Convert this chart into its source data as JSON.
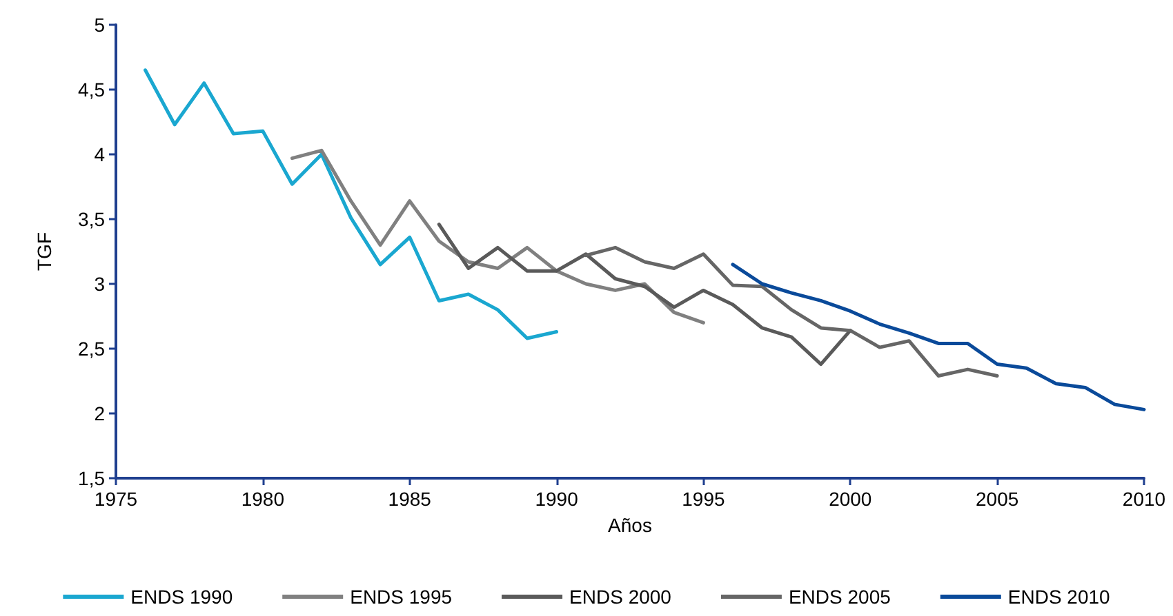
{
  "chart_data": {
    "type": "line",
    "xlabel": "Años",
    "ylabel": "TGF",
    "xlim": [
      1975,
      2010
    ],
    "xticks": [
      1975,
      1980,
      1985,
      1990,
      1995,
      2000,
      2005,
      2010
    ],
    "ylim": [
      1.5,
      5
    ],
    "yticks": [
      {
        "value": 1.5,
        "label": "1,5"
      },
      2,
      {
        "value": 2.5,
        "label": "2,5"
      },
      3,
      {
        "value": 3.5,
        "label": "3,5"
      },
      4,
      {
        "value": 4.5,
        "label": "4,5"
      },
      5
    ],
    "grid": false,
    "legend": "bottom",
    "marker": "none",
    "line_style": "solid",
    "series": [
      {
        "name": "ENDS 1990",
        "color": "#1aa7d0",
        "x": [
          1976,
          1977,
          1978,
          1979,
          1980,
          1981,
          1982,
          1983,
          1984,
          1985,
          1986,
          1987,
          1988,
          1989,
          1990
        ],
        "values": [
          4.65,
          4.23,
          4.55,
          4.16,
          4.18,
          3.77,
          4.0,
          3.51,
          3.15,
          3.36,
          2.87,
          2.92,
          2.8,
          2.58,
          2.63
        ]
      },
      {
        "name": "ENDS 1995",
        "color": "#808080",
        "x": [
          1981,
          1982,
          1983,
          1984,
          1985,
          1986,
          1987,
          1988,
          1989,
          1990,
          1991,
          1992,
          1993,
          1994,
          1995
        ],
        "values": [
          3.97,
          4.03,
          3.64,
          3.3,
          3.64,
          3.33,
          3.17,
          3.12,
          3.28,
          3.1,
          3.0,
          2.95,
          3.0,
          2.78,
          2.7
        ]
      },
      {
        "name": "ENDS 2000",
        "color": "#5a5a5a",
        "x": [
          1986,
          1987,
          1988,
          1989,
          1990,
          1991,
          1992,
          1993,
          1994,
          1995,
          1996,
          1997,
          1998,
          1999,
          2000
        ],
        "values": [
          3.46,
          3.12,
          3.28,
          3.1,
          3.1,
          3.23,
          3.04,
          2.98,
          2.82,
          2.95,
          2.84,
          2.66,
          2.59,
          2.38,
          2.64
        ]
      },
      {
        "name": "ENDS 2005",
        "color": "#666666",
        "x": [
          1991,
          1992,
          1993,
          1994,
          1995,
          1996,
          1997,
          1998,
          1999,
          2000,
          2001,
          2002,
          2003,
          2004,
          2005
        ],
        "values": [
          3.22,
          3.28,
          3.17,
          3.12,
          3.23,
          2.99,
          2.98,
          2.8,
          2.66,
          2.64,
          2.51,
          2.56,
          2.29,
          2.34,
          2.29
        ]
      },
      {
        "name": "ENDS 2010",
        "color": "#0a4a9a",
        "x": [
          1996,
          1997,
          1998,
          1999,
          2000,
          2001,
          2002,
          2003,
          2004,
          2005,
          2006,
          2007,
          2008,
          2009,
          2010
        ],
        "values": [
          3.15,
          3.0,
          2.93,
          2.87,
          2.79,
          2.69,
          2.62,
          2.54,
          2.54,
          2.38,
          2.35,
          2.23,
          2.2,
          2.07,
          2.03
        ]
      }
    ]
  }
}
